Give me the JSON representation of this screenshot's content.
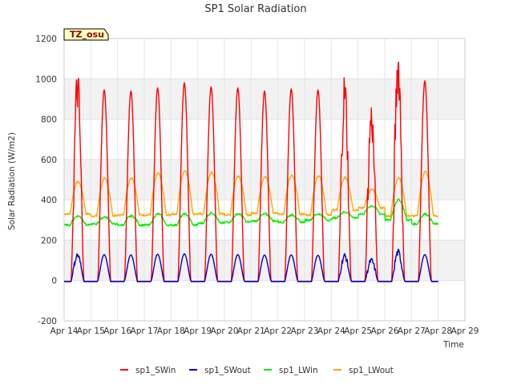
{
  "chart_data": {
    "type": "line",
    "title": "SP1 Solar Radiation",
    "xlabel": "Time",
    "ylabel": "Solar Radiation (W/m2)",
    "badge": "TZ_osu",
    "ylim": [
      -200,
      1200
    ],
    "yticks": [
      "-200",
      "0",
      "200",
      "400",
      "600",
      "800",
      "1000",
      "1200"
    ],
    "xlim_days": [
      14,
      29
    ],
    "xticks": [
      "Apr 14",
      "Apr 15",
      "Apr 16",
      "Apr 17",
      "Apr 18",
      "Apr 19",
      "Apr 20",
      "Apr 21",
      "Apr 22",
      "Apr 23",
      "Apr 24",
      "Apr 25",
      "Apr 26",
      "Apr 27",
      "Apr 28",
      "Apr 29"
    ],
    "grid": true,
    "legend_position": "bottom",
    "series": [
      {
        "name": "sp1_SWin",
        "color": "#ff0000",
        "daily_peak": [
          950,
          945,
          940,
          955,
          980,
          960,
          955,
          940,
          950,
          945,
          930,
          800,
          1065,
          990
        ],
        "baseline": -5
      },
      {
        "name": "sp1_SWout",
        "color": "#0000cc",
        "daily_peak": [
          125,
          128,
          127,
          130,
          132,
          130,
          128,
          126,
          127,
          125,
          122,
          100,
          140,
          128
        ],
        "baseline": -5
      },
      {
        "name": "sp1_LWin",
        "color": "#00ee00",
        "daily_min": [
          275,
          280,
          275,
          275,
          275,
          285,
          290,
          295,
          290,
          300,
          310,
          330,
          300,
          280
        ],
        "daily_max": [
          320,
          315,
          320,
          330,
          330,
          335,
          330,
          330,
          325,
          330,
          340,
          370,
          400,
          330
        ]
      },
      {
        "name": "sp1_LWout",
        "color": "#ffa500",
        "daily_min": [
          330,
          320,
          325,
          325,
          330,
          330,
          325,
          335,
          330,
          325,
          350,
          360,
          320,
          320
        ],
        "daily_max": [
          490,
          505,
          510,
          530,
          545,
          535,
          520,
          515,
          520,
          520,
          510,
          450,
          510,
          540
        ]
      }
    ]
  }
}
